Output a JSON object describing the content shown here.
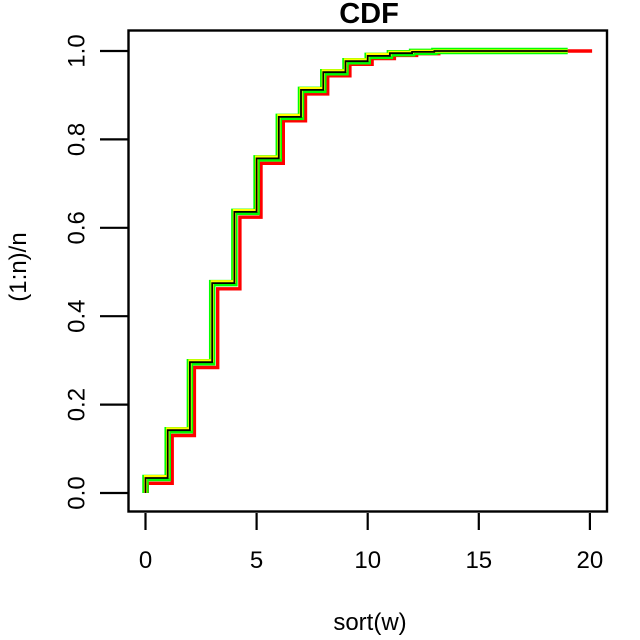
{
  "figure": {
    "title": "CDF",
    "x_axis": {
      "label": "sort(w)",
      "ticks": [
        "0",
        "5",
        "10",
        "15",
        "20"
      ],
      "tick_values": [
        0,
        5,
        10,
        15,
        20
      ],
      "range": [
        0,
        20
      ]
    },
    "y_axis": {
      "label": "(1:n)/n",
      "ticks": [
        "0.0",
        "0.2",
        "0.4",
        "0.6",
        "0.8",
        "1.0"
      ],
      "tick_values": [
        0,
        0.2,
        0.4,
        0.6,
        0.8,
        1.0
      ],
      "range": [
        0,
        1
      ]
    }
  },
  "colors": {
    "background": "#FFFFFF",
    "axis": "#000000",
    "red_curve": "#FF0000",
    "green_curve": "#00FF00",
    "yellow_curve": "#FFFF00",
    "black_curve": "#000000"
  },
  "chart_data": {
    "type": "line",
    "subtype": "step-ecdf",
    "title": "CDF",
    "xlabel": "sort(w)",
    "ylabel": "(1:n)/n",
    "xlim": [
      0,
      20
    ],
    "ylim": [
      0,
      1
    ],
    "x_tick_values": [
      0,
      5,
      10,
      15,
      20
    ],
    "y_tick_values": [
      0,
      0.2,
      0.4,
      0.6,
      0.8,
      1.0
    ],
    "grid": false,
    "legend": "none",
    "description": "Four overlapping empirical CDF step curves (red, green, yellow, black) rising from 0 at x=0 to 1.0 by x~13; green/yellow/black end at x=19, red extends to x=20",
    "series": [
      {
        "name": "red-ecdf",
        "color": "#FF0000",
        "lwd": 3.4,
        "x": [
          0.08,
          1.2,
          2.2,
          3.25,
          4.25,
          5.2,
          6.2,
          7.2,
          8.2,
          9.2,
          10.2,
          11.2,
          12.2,
          13.2,
          14.2
        ],
        "levels": [
          0.022,
          0.13,
          0.284,
          0.462,
          0.624,
          0.746,
          0.842,
          0.903,
          0.944,
          0.97,
          0.983,
          0.99,
          0.994,
          0.997,
          1.0
        ],
        "x_end": 20.1
      },
      {
        "name": "green-ecdf",
        "color": "#00FF00",
        "lwd": 6.5,
        "x": [
          0,
          1,
          2,
          3,
          4,
          5,
          6,
          7,
          8,
          9,
          10,
          11,
          12,
          13
        ],
        "levels": [
          0.034,
          0.142,
          0.296,
          0.475,
          0.636,
          0.757,
          0.851,
          0.912,
          0.952,
          0.977,
          0.989,
          0.995,
          0.998,
          1.0
        ],
        "x_end": 19.0
      },
      {
        "name": "yellow-ecdf",
        "color": "#FFFF00",
        "lwd": 3.2,
        "x": [
          0,
          1,
          2,
          3,
          4,
          5,
          6,
          7,
          8,
          9,
          10,
          11,
          12,
          13
        ],
        "levels": [
          0.037,
          0.145,
          0.299,
          0.478,
          0.639,
          0.76,
          0.854,
          0.915,
          0.955,
          0.98,
          0.992,
          0.997,
          0.999,
          1.0
        ],
        "x_end": 19.0
      },
      {
        "name": "black-ecdf",
        "color": "#000000",
        "lwd": 1.8,
        "x": [
          0,
          1,
          2,
          3,
          4,
          5,
          6,
          7,
          8,
          9,
          10,
          11,
          12,
          13
        ],
        "levels": [
          0.034,
          0.142,
          0.296,
          0.475,
          0.636,
          0.757,
          0.851,
          0.912,
          0.952,
          0.977,
          0.989,
          0.995,
          0.998,
          1.0
        ],
        "x_end": 19.0
      }
    ]
  }
}
